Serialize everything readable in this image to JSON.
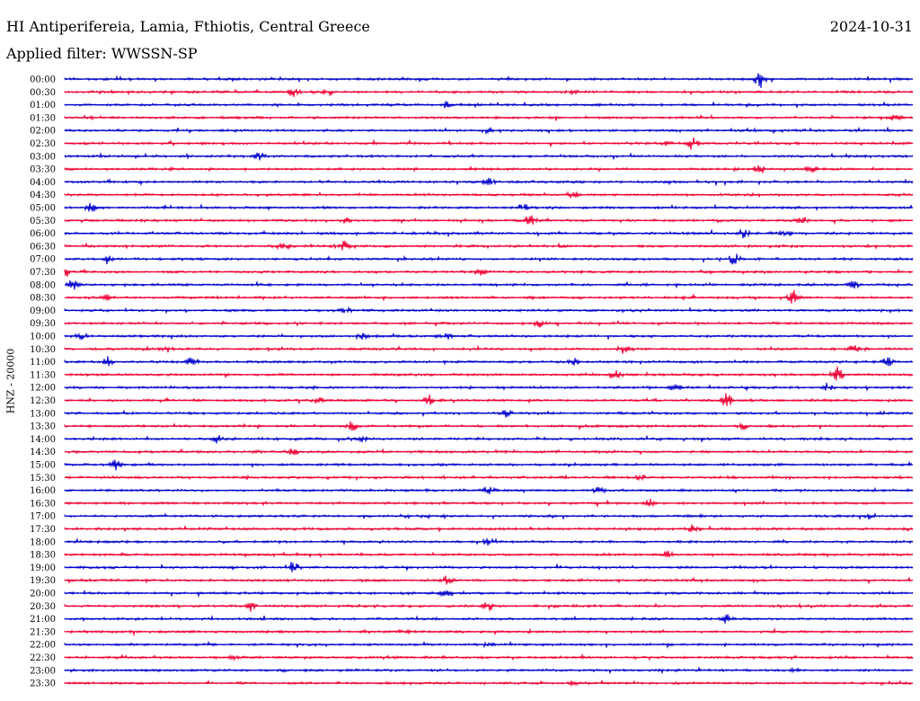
{
  "header": {
    "station": "HI Antiperifereia, Lamia, Fthiotis, Central Greece",
    "date": "2024-10-31",
    "filter": "Applied filter: WWSSN-SP",
    "channel": "HNZ - 20000"
  },
  "colors": {
    "even": "#0000cc",
    "odd": "#ee0033"
  },
  "chart_data": {
    "type": "line",
    "description": "Helicorder: 48 half-hour traces",
    "rows": [
      "00:00",
      "00:30",
      "01:00",
      "01:30",
      "02:00",
      "02:30",
      "03:00",
      "03:30",
      "04:00",
      "04:30",
      "05:00",
      "05:30",
      "06:00",
      "06:30",
      "07:00",
      "07:30",
      "08:00",
      "08:30",
      "09:00",
      "09:30",
      "10:00",
      "10:30",
      "11:00",
      "11:30",
      "12:00",
      "12:30",
      "13:00",
      "13:30",
      "14:00",
      "14:30",
      "15:00",
      "15:30",
      "16:00",
      "16:30",
      "17:00",
      "17:30",
      "18:00",
      "18:30",
      "19:00",
      "19:30",
      "20:00",
      "20:30",
      "21:00",
      "21:30",
      "22:00",
      "22:30",
      "23:00",
      "23:30"
    ],
    "events": [
      [
        [
          0.82,
          5
        ]
      ],
      [
        [
          0.27,
          3
        ],
        [
          0.31,
          2
        ],
        [
          0.6,
          1
        ]
      ],
      [
        [
          0.45,
          2
        ]
      ],
      [
        [
          0.98,
          2
        ]
      ],
      [
        [
          0.5,
          2
        ]
      ],
      [
        [
          0.74,
          4
        ],
        [
          0.71,
          1
        ]
      ],
      [
        [
          0.23,
          2
        ]
      ],
      [
        [
          0.82,
          3
        ],
        [
          0.88,
          2
        ]
      ],
      [
        [
          0.5,
          3
        ]
      ],
      [
        [
          0.6,
          2
        ]
      ],
      [
        [
          0.03,
          3
        ],
        [
          0.54,
          3
        ]
      ],
      [
        [
          0.55,
          4
        ],
        [
          0.33,
          2
        ],
        [
          0.87,
          2
        ]
      ],
      [
        [
          0.8,
          3
        ],
        [
          0.85,
          2
        ]
      ],
      [
        [
          0.33,
          3
        ],
        [
          0.26,
          2
        ]
      ],
      [
        [
          0.79,
          4
        ],
        [
          0.05,
          2
        ]
      ],
      [
        [
          0.0,
          3
        ],
        [
          0.49,
          2
        ]
      ],
      [
        [
          0.01,
          3
        ],
        [
          0.93,
          2
        ]
      ],
      [
        [
          0.86,
          5
        ],
        [
          0.05,
          2
        ]
      ],
      [
        [
          0.33,
          2
        ]
      ],
      [
        [
          0.56,
          2
        ]
      ],
      [
        [
          0.02,
          2
        ],
        [
          0.45,
          3
        ],
        [
          0.35,
          2
        ]
      ],
      [
        [
          0.12,
          2
        ],
        [
          0.66,
          3
        ],
        [
          0.93,
          2
        ]
      ],
      [
        [
          0.05,
          3
        ],
        [
          0.15,
          3
        ],
        [
          0.6,
          2
        ],
        [
          0.97,
          3
        ]
      ],
      [
        [
          0.65,
          3
        ],
        [
          0.91,
          5
        ]
      ],
      [
        [
          0.9,
          3
        ],
        [
          0.72,
          2
        ]
      ],
      [
        [
          0.43,
          3
        ],
        [
          0.78,
          4
        ],
        [
          0.3,
          2
        ]
      ],
      [
        [
          0.52,
          2
        ]
      ],
      [
        [
          0.34,
          3
        ],
        [
          0.8,
          2
        ]
      ],
      [
        [
          0.18,
          2
        ],
        [
          0.35,
          2
        ]
      ],
      [
        [
          0.27,
          2
        ]
      ],
      [
        [
          0.06,
          3
        ]
      ],
      [
        [
          0.68,
          2
        ]
      ],
      [
        [
          0.5,
          2
        ],
        [
          0.63,
          2
        ]
      ],
      [
        [
          0.69,
          2
        ]
      ],
      [
        [
          0.95,
          2
        ]
      ],
      [
        [
          0.74,
          2
        ]
      ],
      [
        [
          0.5,
          2
        ]
      ],
      [
        [
          0.71,
          2
        ]
      ],
      [
        [
          0.27,
          3
        ]
      ],
      [
        [
          0.45,
          3
        ]
      ],
      [
        [
          0.45,
          3
        ]
      ],
      [
        [
          0.22,
          2
        ],
        [
          0.5,
          3
        ]
      ],
      [
        [
          0.78,
          3
        ]
      ],
      [
        [
          0.4,
          1
        ]
      ],
      [
        [
          0.5,
          1
        ]
      ],
      [
        [
          0.2,
          1
        ]
      ],
      [
        [
          0.86,
          1
        ]
      ],
      [
        [
          0.6,
          1
        ]
      ]
    ]
  }
}
